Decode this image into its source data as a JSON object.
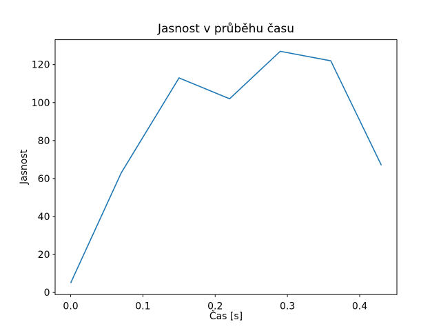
{
  "figure": {
    "background": "#ffffff",
    "text_color": "#000000"
  },
  "chart_data": {
    "type": "line",
    "title": "Jasnost v průběhu času",
    "xlabel": "Čas [s]",
    "ylabel": "Jasnost",
    "x": [
      0.0,
      0.07,
      0.15,
      0.22,
      0.29,
      0.36,
      0.43
    ],
    "y": [
      5,
      63,
      113,
      102,
      127,
      122,
      67
    ],
    "series": [
      {
        "name": "Jasnost",
        "color": "#1f77b4"
      }
    ],
    "line_color": "#1f77b4",
    "line_width": 1.6,
    "spine_color": "#000000",
    "xlim": [
      -0.0215,
      0.4515
    ],
    "ylim": [
      -1.1,
      133.1
    ],
    "xticks": {
      "values": [
        0.0,
        0.1,
        0.2,
        0.3,
        0.4
      ],
      "labels": [
        "0.0",
        "0.1",
        "0.2",
        "0.3",
        "0.4"
      ]
    },
    "yticks": {
      "values": [
        0,
        20,
        40,
        60,
        80,
        100,
        120
      ],
      "labels": [
        "0",
        "20",
        "40",
        "60",
        "80",
        "100",
        "120"
      ]
    },
    "grid": false,
    "legend_position": "none"
  }
}
